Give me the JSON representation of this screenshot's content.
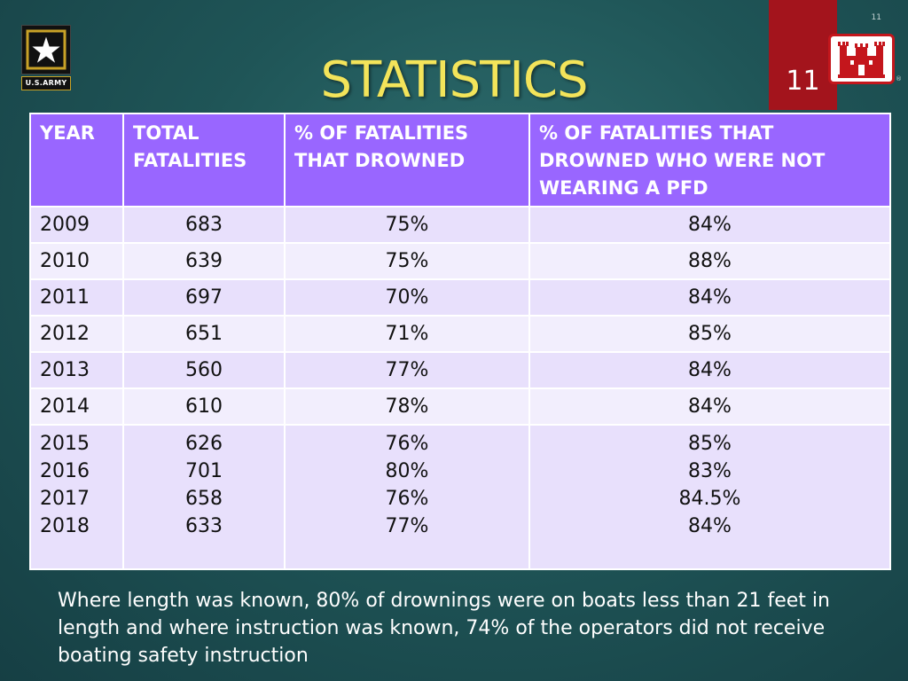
{
  "logo": {
    "army_text": "U.S.ARMY"
  },
  "header": {
    "title": "STATISTICS",
    "slide_number": "11",
    "corner_number": "11",
    "reg_mark": "®"
  },
  "table": {
    "headers": [
      "YEAR",
      "TOTAL FATALITIES",
      "% OF FATALITIES THAT DROWNED",
      "% OF FATALITIES THAT DROWNED WHO WERE NOT WEARING A PFD"
    ],
    "rows": [
      [
        "2009",
        "683",
        "75%",
        "84%"
      ],
      [
        "2010",
        "639",
        "75%",
        "88%"
      ],
      [
        "2011",
        "697",
        "70%",
        "84%"
      ],
      [
        "2012",
        "651",
        "71%",
        "85%"
      ],
      [
        "2013",
        "560",
        "77%",
        "84%"
      ],
      [
        "2014",
        "610",
        "78%",
        "84%"
      ]
    ],
    "grouped_row": {
      "years": [
        "2015",
        "2016",
        "2017",
        "2018"
      ],
      "totals": [
        "626",
        "701",
        "658",
        "633"
      ],
      "drowned": [
        "76%",
        "80%",
        "76%",
        "77%"
      ],
      "no_pfd": [
        "85%",
        "83%",
        "84.5%",
        "84%"
      ]
    }
  },
  "footer": {
    "note": "Where length was known, 80% of drownings were on boats less than 21 feet in length and where instruction was known, 74% of the operators did not receive boating safety instruction"
  },
  "colors": {
    "title": "#f3e45a",
    "header_bg": "#9966ff",
    "red_tab": "#a3141c"
  }
}
